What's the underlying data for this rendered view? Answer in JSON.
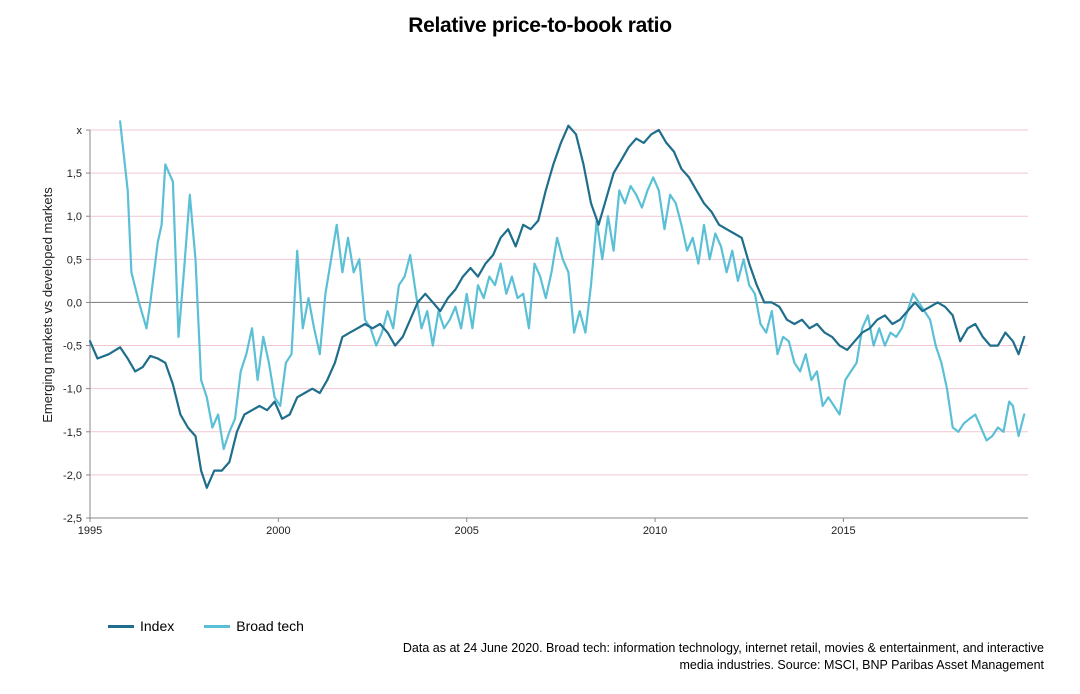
{
  "chart_data": {
    "type": "line",
    "title": "Relative price-to-book ratio",
    "ylabel": "Emerging markets vs developed markets",
    "xlim": [
      1995,
      2019.9
    ],
    "ylim": [
      -2.5,
      2.0
    ],
    "y_ticks": [
      {
        "value": 2.0,
        "label": "x"
      },
      {
        "value": 1.5,
        "label": "1,5"
      },
      {
        "value": 1.0,
        "label": "1,0"
      },
      {
        "value": 0.5,
        "label": "0,5"
      },
      {
        "value": 0.0,
        "label": "0,0"
      },
      {
        "value": -0.5,
        "label": "-0,5"
      },
      {
        "value": -1.0,
        "label": "-1,0"
      },
      {
        "value": -1.5,
        "label": "-1,5"
      },
      {
        "value": -2.0,
        "label": "-2,0"
      },
      {
        "value": -2.5,
        "label": "-2,5"
      }
    ],
    "x_ticks": [
      {
        "value": 1995,
        "label": "1995"
      },
      {
        "value": 2000,
        "label": "2000"
      },
      {
        "value": 2005,
        "label": "2005"
      },
      {
        "value": 2010,
        "label": "2010"
      },
      {
        "value": 2015,
        "label": "2015"
      }
    ],
    "grid": "horizontal",
    "legend": "bottom-left",
    "series": [
      {
        "name": "Index",
        "color": "#1f6e8c",
        "points": [
          [
            1995.0,
            -0.45
          ],
          [
            1995.2,
            -0.65
          ],
          [
            1995.5,
            -0.6
          ],
          [
            1995.8,
            -0.52
          ],
          [
            1996.0,
            -0.65
          ],
          [
            1996.2,
            -0.8
          ],
          [
            1996.4,
            -0.75
          ],
          [
            1996.6,
            -0.62
          ],
          [
            1996.8,
            -0.65
          ],
          [
            1997.0,
            -0.7
          ],
          [
            1997.2,
            -0.95
          ],
          [
            1997.4,
            -1.3
          ],
          [
            1997.6,
            -1.45
          ],
          [
            1997.8,
            -1.55
          ],
          [
            1997.95,
            -1.95
          ],
          [
            1998.1,
            -2.15
          ],
          [
            1998.3,
            -1.95
          ],
          [
            1998.5,
            -1.95
          ],
          [
            1998.7,
            -1.85
          ],
          [
            1998.9,
            -1.5
          ],
          [
            1999.1,
            -1.3
          ],
          [
            1999.3,
            -1.25
          ],
          [
            1999.5,
            -1.2
          ],
          [
            1999.7,
            -1.25
          ],
          [
            1999.9,
            -1.15
          ],
          [
            2000.1,
            -1.35
          ],
          [
            2000.3,
            -1.3
          ],
          [
            2000.5,
            -1.1
          ],
          [
            2000.7,
            -1.05
          ],
          [
            2000.9,
            -1.0
          ],
          [
            2001.1,
            -1.05
          ],
          [
            2001.3,
            -0.9
          ],
          [
            2001.5,
            -0.7
          ],
          [
            2001.7,
            -0.4
          ],
          [
            2001.9,
            -0.35
          ],
          [
            2002.1,
            -0.3
          ],
          [
            2002.3,
            -0.25
          ],
          [
            2002.5,
            -0.3
          ],
          [
            2002.7,
            -0.25
          ],
          [
            2002.9,
            -0.35
          ],
          [
            2003.1,
            -0.5
          ],
          [
            2003.3,
            -0.4
          ],
          [
            2003.5,
            -0.2
          ],
          [
            2003.7,
            0.0
          ],
          [
            2003.9,
            0.1
          ],
          [
            2004.1,
            0.0
          ],
          [
            2004.3,
            -0.1
          ],
          [
            2004.5,
            0.05
          ],
          [
            2004.7,
            0.15
          ],
          [
            2004.9,
            0.3
          ],
          [
            2005.1,
            0.4
          ],
          [
            2005.3,
            0.3
          ],
          [
            2005.5,
            0.45
          ],
          [
            2005.7,
            0.55
          ],
          [
            2005.9,
            0.75
          ],
          [
            2006.1,
            0.85
          ],
          [
            2006.3,
            0.65
          ],
          [
            2006.5,
            0.9
          ],
          [
            2006.7,
            0.85
          ],
          [
            2006.9,
            0.95
          ],
          [
            2007.1,
            1.3
          ],
          [
            2007.3,
            1.6
          ],
          [
            2007.5,
            1.85
          ],
          [
            2007.7,
            2.05
          ],
          [
            2007.9,
            1.95
          ],
          [
            2008.1,
            1.6
          ],
          [
            2008.3,
            1.15
          ],
          [
            2008.5,
            0.9
          ],
          [
            2008.7,
            1.2
          ],
          [
            2008.9,
            1.5
          ],
          [
            2009.1,
            1.65
          ],
          [
            2009.3,
            1.8
          ],
          [
            2009.5,
            1.9
          ],
          [
            2009.7,
            1.85
          ],
          [
            2009.9,
            1.95
          ],
          [
            2010.1,
            2.0
          ],
          [
            2010.3,
            1.85
          ],
          [
            2010.5,
            1.75
          ],
          [
            2010.7,
            1.55
          ],
          [
            2010.9,
            1.45
          ],
          [
            2011.1,
            1.3
          ],
          [
            2011.3,
            1.15
          ],
          [
            2011.5,
            1.05
          ],
          [
            2011.7,
            0.9
          ],
          [
            2011.9,
            0.85
          ],
          [
            2012.1,
            0.8
          ],
          [
            2012.3,
            0.75
          ],
          [
            2012.5,
            0.45
          ],
          [
            2012.7,
            0.2
          ],
          [
            2012.9,
            0.0
          ],
          [
            2013.1,
            0.0
          ],
          [
            2013.3,
            -0.05
          ],
          [
            2013.5,
            -0.2
          ],
          [
            2013.7,
            -0.25
          ],
          [
            2013.9,
            -0.2
          ],
          [
            2014.1,
            -0.3
          ],
          [
            2014.3,
            -0.25
          ],
          [
            2014.5,
            -0.35
          ],
          [
            2014.7,
            -0.4
          ],
          [
            2014.9,
            -0.5
          ],
          [
            2015.1,
            -0.55
          ],
          [
            2015.3,
            -0.45
          ],
          [
            2015.5,
            -0.35
          ],
          [
            2015.7,
            -0.3
          ],
          [
            2015.9,
            -0.2
          ],
          [
            2016.1,
            -0.15
          ],
          [
            2016.3,
            -0.25
          ],
          [
            2016.5,
            -0.2
          ],
          [
            2016.7,
            -0.1
          ],
          [
            2016.9,
            0.0
          ],
          [
            2017.1,
            -0.1
          ],
          [
            2017.3,
            -0.05
          ],
          [
            2017.5,
            0.0
          ],
          [
            2017.7,
            -0.05
          ],
          [
            2017.9,
            -0.15
          ],
          [
            2018.1,
            -0.45
          ],
          [
            2018.3,
            -0.3
          ],
          [
            2018.5,
            -0.25
          ],
          [
            2018.7,
            -0.4
          ],
          [
            2018.9,
            -0.5
          ],
          [
            2019.1,
            -0.5
          ],
          [
            2019.3,
            -0.35
          ],
          [
            2019.5,
            -0.45
          ],
          [
            2019.65,
            -0.6
          ],
          [
            2019.8,
            -0.4
          ]
        ]
      },
      {
        "name": "Broad tech",
        "color": "#5bc0d6",
        "points": [
          [
            1995.8,
            2.1
          ],
          [
            1996.0,
            1.3
          ],
          [
            1996.1,
            0.35
          ],
          [
            1996.3,
            0.0
          ],
          [
            1996.5,
            -0.3
          ],
          [
            1996.6,
            0.0
          ],
          [
            1996.8,
            0.7
          ],
          [
            1996.9,
            0.9
          ],
          [
            1997.0,
            1.6
          ],
          [
            1997.2,
            1.4
          ],
          [
            1997.35,
            -0.4
          ],
          [
            1997.5,
            0.4
          ],
          [
            1997.65,
            1.25
          ],
          [
            1997.8,
            0.5
          ],
          [
            1997.95,
            -0.9
          ],
          [
            1998.1,
            -1.1
          ],
          [
            1998.25,
            -1.45
          ],
          [
            1998.4,
            -1.3
          ],
          [
            1998.55,
            -1.7
          ],
          [
            1998.7,
            -1.5
          ],
          [
            1998.85,
            -1.35
          ],
          [
            1999.0,
            -0.8
          ],
          [
            1999.15,
            -0.6
          ],
          [
            1999.3,
            -0.3
          ],
          [
            1999.45,
            -0.9
          ],
          [
            1999.6,
            -0.4
          ],
          [
            1999.75,
            -0.7
          ],
          [
            1999.9,
            -1.1
          ],
          [
            2000.05,
            -1.2
          ],
          [
            2000.2,
            -0.7
          ],
          [
            2000.35,
            -0.6
          ],
          [
            2000.5,
            0.6
          ],
          [
            2000.65,
            -0.3
          ],
          [
            2000.8,
            0.05
          ],
          [
            2000.95,
            -0.3
          ],
          [
            2001.1,
            -0.6
          ],
          [
            2001.25,
            0.1
          ],
          [
            2001.4,
            0.5
          ],
          [
            2001.55,
            0.9
          ],
          [
            2001.7,
            0.35
          ],
          [
            2001.85,
            0.75
          ],
          [
            2002.0,
            0.35
          ],
          [
            2002.15,
            0.5
          ],
          [
            2002.3,
            -0.2
          ],
          [
            2002.45,
            -0.3
          ],
          [
            2002.6,
            -0.5
          ],
          [
            2002.75,
            -0.35
          ],
          [
            2002.9,
            -0.1
          ],
          [
            2003.05,
            -0.3
          ],
          [
            2003.2,
            0.2
          ],
          [
            2003.35,
            0.3
          ],
          [
            2003.5,
            0.55
          ],
          [
            2003.65,
            0.1
          ],
          [
            2003.8,
            -0.3
          ],
          [
            2003.95,
            -0.1
          ],
          [
            2004.1,
            -0.5
          ],
          [
            2004.25,
            -0.1
          ],
          [
            2004.4,
            -0.3
          ],
          [
            2004.55,
            -0.2
          ],
          [
            2004.7,
            -0.05
          ],
          [
            2004.85,
            -0.3
          ],
          [
            2005.0,
            0.1
          ],
          [
            2005.15,
            -0.3
          ],
          [
            2005.3,
            0.2
          ],
          [
            2005.45,
            0.05
          ],
          [
            2005.6,
            0.3
          ],
          [
            2005.75,
            0.2
          ],
          [
            2005.9,
            0.45
          ],
          [
            2006.05,
            0.1
          ],
          [
            2006.2,
            0.3
          ],
          [
            2006.35,
            0.05
          ],
          [
            2006.5,
            0.1
          ],
          [
            2006.65,
            -0.3
          ],
          [
            2006.8,
            0.45
          ],
          [
            2006.95,
            0.3
          ],
          [
            2007.1,
            0.05
          ],
          [
            2007.25,
            0.35
          ],
          [
            2007.4,
            0.75
          ],
          [
            2007.55,
            0.5
          ],
          [
            2007.7,
            0.35
          ],
          [
            2007.85,
            -0.35
          ],
          [
            2008.0,
            -0.1
          ],
          [
            2008.15,
            -0.35
          ],
          [
            2008.3,
            0.2
          ],
          [
            2008.45,
            0.95
          ],
          [
            2008.6,
            0.5
          ],
          [
            2008.75,
            1.0
          ],
          [
            2008.9,
            0.6
          ],
          [
            2009.05,
            1.3
          ],
          [
            2009.2,
            1.15
          ],
          [
            2009.35,
            1.35
          ],
          [
            2009.5,
            1.25
          ],
          [
            2009.65,
            1.1
          ],
          [
            2009.8,
            1.3
          ],
          [
            2009.95,
            1.45
          ],
          [
            2010.1,
            1.3
          ],
          [
            2010.25,
            0.85
          ],
          [
            2010.4,
            1.25
          ],
          [
            2010.55,
            1.15
          ],
          [
            2010.7,
            0.9
          ],
          [
            2010.85,
            0.6
          ],
          [
            2011.0,
            0.75
          ],
          [
            2011.15,
            0.45
          ],
          [
            2011.3,
            0.9
          ],
          [
            2011.45,
            0.5
          ],
          [
            2011.6,
            0.8
          ],
          [
            2011.75,
            0.65
          ],
          [
            2011.9,
            0.35
          ],
          [
            2012.05,
            0.6
          ],
          [
            2012.2,
            0.25
          ],
          [
            2012.35,
            0.5
          ],
          [
            2012.5,
            0.2
          ],
          [
            2012.65,
            0.1
          ],
          [
            2012.8,
            -0.25
          ],
          [
            2012.95,
            -0.35
          ],
          [
            2013.1,
            -0.1
          ],
          [
            2013.25,
            -0.6
          ],
          [
            2013.4,
            -0.4
          ],
          [
            2013.55,
            -0.45
          ],
          [
            2013.7,
            -0.7
          ],
          [
            2013.85,
            -0.8
          ],
          [
            2014.0,
            -0.6
          ],
          [
            2014.15,
            -0.9
          ],
          [
            2014.3,
            -0.8
          ],
          [
            2014.45,
            -1.2
          ],
          [
            2014.6,
            -1.1
          ],
          [
            2014.75,
            -1.2
          ],
          [
            2014.9,
            -1.3
          ],
          [
            2015.05,
            -0.9
          ],
          [
            2015.2,
            -0.8
          ],
          [
            2015.35,
            -0.7
          ],
          [
            2015.5,
            -0.3
          ],
          [
            2015.65,
            -0.15
          ],
          [
            2015.8,
            -0.5
          ],
          [
            2015.95,
            -0.3
          ],
          [
            2016.1,
            -0.5
          ],
          [
            2016.25,
            -0.35
          ],
          [
            2016.4,
            -0.4
          ],
          [
            2016.55,
            -0.3
          ],
          [
            2016.7,
            -0.1
          ],
          [
            2016.85,
            0.1
          ],
          [
            2017.0,
            0.0
          ],
          [
            2017.15,
            -0.1
          ],
          [
            2017.3,
            -0.2
          ],
          [
            2017.45,
            -0.5
          ],
          [
            2017.6,
            -0.7
          ],
          [
            2017.75,
            -1.0
          ],
          [
            2017.9,
            -1.45
          ],
          [
            2018.05,
            -1.5
          ],
          [
            2018.2,
            -1.4
          ],
          [
            2018.35,
            -1.35
          ],
          [
            2018.5,
            -1.3
          ],
          [
            2018.65,
            -1.45
          ],
          [
            2018.8,
            -1.6
          ],
          [
            2018.95,
            -1.55
          ],
          [
            2019.1,
            -1.45
          ],
          [
            2019.25,
            -1.5
          ],
          [
            2019.4,
            -1.15
          ],
          [
            2019.5,
            -1.2
          ],
          [
            2019.65,
            -1.55
          ],
          [
            2019.8,
            -1.3
          ]
        ]
      }
    ],
    "footnote_lines": [
      "Data as at 24 June 2020. Broad tech: information technology, internet retail, movies & entertainment, and interactive",
      "media industries. Source: MSCI, BNP Paribas Asset Management"
    ]
  }
}
